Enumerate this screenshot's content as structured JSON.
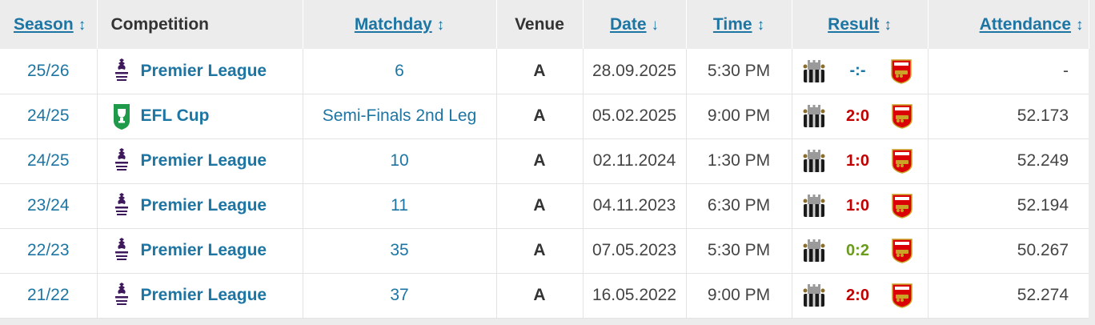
{
  "header": {
    "season": "Season",
    "competition": "Competition",
    "matchday": "Matchday",
    "venue": "Venue",
    "date": "Date",
    "time": "Time",
    "result": "Result",
    "attendance": "Attendance",
    "sort_both_glyph": "↕",
    "sort_down_glyph": "↓"
  },
  "colors": {
    "link": "#1d75a3",
    "loss": "#c00000",
    "win": "#6b9b1e",
    "header_bg": "#ececec"
  },
  "rows": [
    {
      "season": "25/26",
      "competition": "Premier League",
      "comp_icon": "premier-league-logo-icon",
      "matchday": "6",
      "venue": "A",
      "date": "28.09.2025",
      "time": "5:30 PM",
      "score": "-:-",
      "score_color": "#1d75a3",
      "home_icon": "newcastle-crest-icon",
      "away_icon": "arsenal-crest-icon",
      "attendance": "-"
    },
    {
      "season": "24/25",
      "competition": "EFL Cup",
      "comp_icon": "efl-cup-logo-icon",
      "matchday": "Semi-Finals 2nd Leg",
      "venue": "A",
      "date": "05.02.2025",
      "time": "9:00 PM",
      "score": "2:0",
      "score_color": "#c00000",
      "home_icon": "newcastle-crest-icon",
      "away_icon": "arsenal-crest-icon",
      "attendance": "52.173"
    },
    {
      "season": "24/25",
      "competition": "Premier League",
      "comp_icon": "premier-league-logo-icon",
      "matchday": "10",
      "venue": "A",
      "date": "02.11.2024",
      "time": "1:30 PM",
      "score": "1:0",
      "score_color": "#c00000",
      "home_icon": "newcastle-crest-icon",
      "away_icon": "arsenal-crest-icon",
      "attendance": "52.249"
    },
    {
      "season": "23/24",
      "competition": "Premier League",
      "comp_icon": "premier-league-logo-icon",
      "matchday": "11",
      "venue": "A",
      "date": "04.11.2023",
      "time": "6:30 PM",
      "score": "1:0",
      "score_color": "#c00000",
      "home_icon": "newcastle-crest-icon",
      "away_icon": "arsenal-crest-icon",
      "attendance": "52.194"
    },
    {
      "season": "22/23",
      "competition": "Premier League",
      "comp_icon": "premier-league-logo-icon",
      "matchday": "35",
      "venue": "A",
      "date": "07.05.2023",
      "time": "5:30 PM",
      "score": "0:2",
      "score_color": "#6b9b1e",
      "home_icon": "newcastle-crest-icon",
      "away_icon": "arsenal-crest-icon",
      "attendance": "50.267"
    },
    {
      "season": "21/22",
      "competition": "Premier League",
      "comp_icon": "premier-league-logo-icon",
      "matchday": "37",
      "venue": "A",
      "date": "16.05.2022",
      "time": "9:00 PM",
      "score": "2:0",
      "score_color": "#c00000",
      "home_icon": "newcastle-crest-icon",
      "away_icon": "arsenal-crest-icon",
      "attendance": "52.274"
    }
  ]
}
